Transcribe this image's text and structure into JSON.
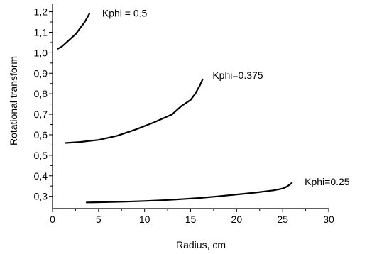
{
  "chart_data": {
    "type": "line",
    "title": "",
    "xlabel": "Radius, cm",
    "ylabel": "Rotational transform",
    "xlim": [
      0,
      30
    ],
    "ylim": [
      0.24,
      1.24
    ],
    "x_ticks": [
      "0",
      "5",
      "10",
      "15",
      "20",
      "25",
      "30"
    ],
    "y_ticks": [
      "0,3",
      "0,4",
      "0,5",
      "0,6",
      "0,7",
      "0,8",
      "0,9",
      "1,0",
      "1,1",
      "1,2"
    ],
    "grid": false,
    "legend": "none",
    "series": [
      {
        "name": "Kphi = 0.5",
        "x": [
          0.6,
          1.0,
          1.5,
          2.0,
          2.5,
          3.0,
          3.5,
          4.0
        ],
        "y": [
          1.02,
          1.03,
          1.05,
          1.07,
          1.09,
          1.12,
          1.15,
          1.19
        ]
      },
      {
        "name": "Kphi=0.375",
        "x": [
          1.4,
          3.0,
          5.0,
          7.0,
          9.0,
          11.0,
          13.0,
          14.0,
          15.0,
          15.5,
          16.0,
          16.3
        ],
        "y": [
          0.56,
          0.565,
          0.575,
          0.595,
          0.625,
          0.66,
          0.7,
          0.74,
          0.77,
          0.8,
          0.84,
          0.87
        ]
      },
      {
        "name": "Kphi=0.25",
        "x": [
          3.7,
          6.0,
          8.0,
          10.0,
          12.0,
          14.0,
          16.0,
          18.0,
          20.0,
          22.0,
          24.0,
          25.0,
          25.5,
          26.0
        ],
        "y": [
          0.27,
          0.272,
          0.274,
          0.277,
          0.281,
          0.286,
          0.292,
          0.3,
          0.309,
          0.318,
          0.329,
          0.338,
          0.348,
          0.365
        ]
      }
    ]
  }
}
